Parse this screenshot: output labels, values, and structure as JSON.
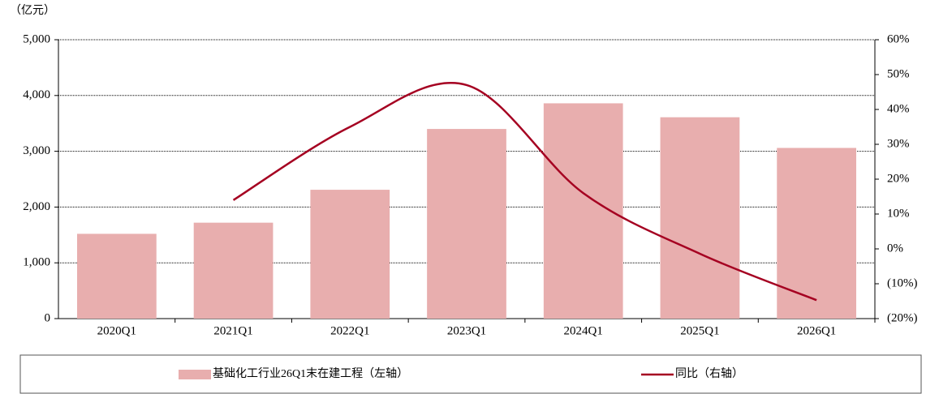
{
  "chart_data": {
    "type": "bar_line",
    "y_unit_label": "（亿元）",
    "categories": [
      "2020Q1",
      "2021Q1",
      "2022Q1",
      "2023Q1",
      "2024Q1",
      "2025Q1",
      "2026Q1"
    ],
    "series": [
      {
        "name": "基础化工行业26Q1末在建工程（左轴）",
        "type": "bar",
        "color": "#e8aeae",
        "values": [
          1520,
          1720,
          2310,
          3400,
          3860,
          3610,
          3060
        ]
      },
      {
        "name": "同比（右轴）",
        "type": "line",
        "axis": "y2",
        "color": "#a50021",
        "values": [
          null,
          14,
          35,
          47,
          16,
          -1.4,
          -14.7
        ]
      }
    ],
    "ylim": [
      0,
      5000
    ],
    "yticks": [
      0,
      {
        "value": 1000,
        "label": "1,000"
      },
      {
        "value": 2000,
        "label": "2,000"
      },
      {
        "value": 3000,
        "label": "3,000"
      },
      {
        "value": 4000,
        "label": "4,000"
      },
      {
        "value": 5000,
        "label": "5,000"
      }
    ],
    "y2lim": [
      -20,
      60
    ],
    "y2ticks": [
      {
        "value": -20,
        "label": "(20%)"
      },
      {
        "value": -10,
        "label": "(10%)"
      },
      {
        "value": 0,
        "label": "0%"
      },
      {
        "value": 10,
        "label": "10%"
      },
      {
        "value": 20,
        "label": "20%"
      },
      {
        "value": 30,
        "label": "30%"
      },
      {
        "value": 40,
        "label": "40%"
      },
      {
        "value": 50,
        "label": "50%"
      },
      {
        "value": 60,
        "label": "60%"
      }
    ],
    "negative_tick_color": "#ff0000",
    "grid": true,
    "legend": "bottom"
  }
}
